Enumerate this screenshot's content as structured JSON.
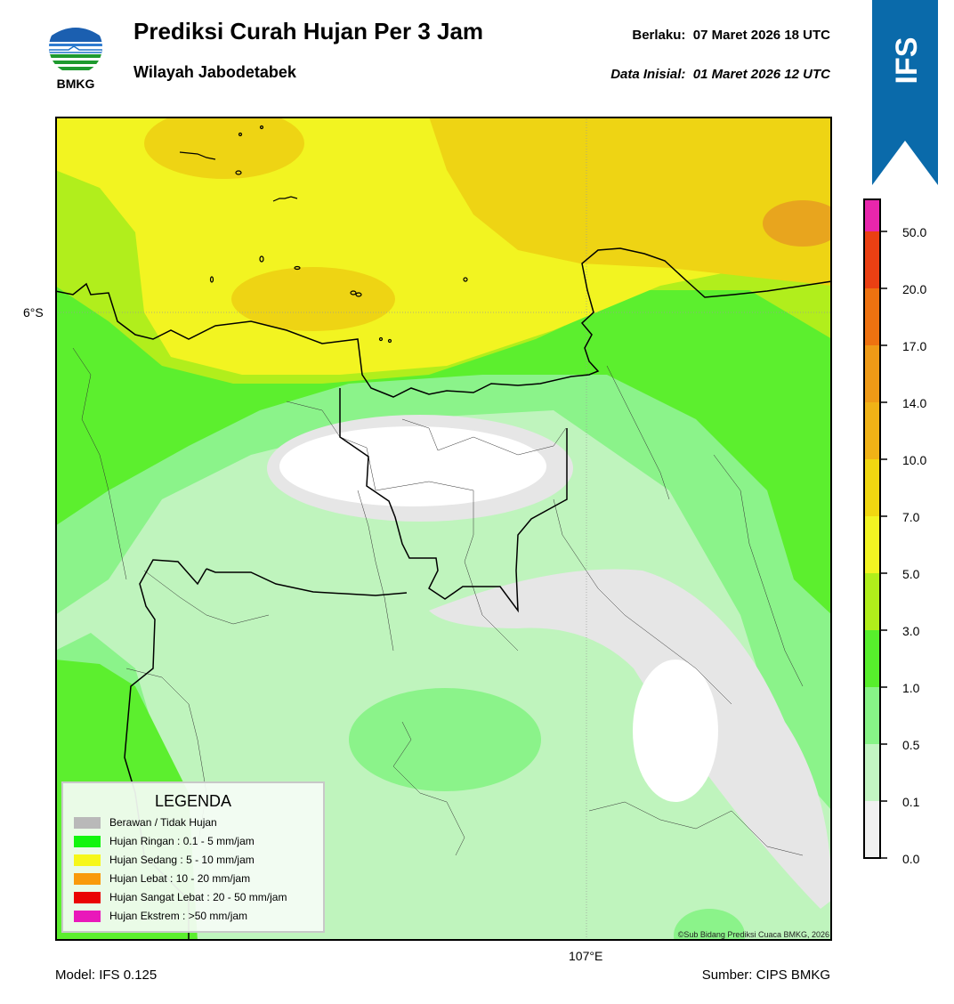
{
  "header": {
    "logo_text": "BMKG",
    "title": "Prediksi Curah Hujan Per 3 Jam",
    "subtitle": "Wilayah Jabodetabek",
    "valid_label": "Berlaku:",
    "valid_value": "07 Maret 2026 18 UTC",
    "init_label": "Data Inisial:",
    "init_value": "01 Maret 2026 12 UTC"
  },
  "badge": {
    "text": "IFS",
    "color": "#0a6aaa"
  },
  "map": {
    "lat_label": "6°S",
    "lon_label": "107°E",
    "copyright": "©Sub Bidang Prediksi Cuaca BMKG, 2026"
  },
  "colorbar": {
    "ticks": [
      "0.0",
      "0.1",
      "0.5",
      "1.0",
      "3.0",
      "5.0",
      "7.0",
      "10.0",
      "14.0",
      "17.0",
      "20.0",
      "50.0"
    ],
    "colors": [
      "#f1f1f1",
      "#c3f5c3",
      "#87f487",
      "#57ef2c",
      "#b0ee1b",
      "#f2f422",
      "#f1d711",
      "#f0b216",
      "#ef9a16",
      "#ee7210",
      "#ea4013",
      "#e826ac"
    ]
  },
  "legend": {
    "title": "LEGENDA",
    "items": [
      {
        "label": "Berawan / Tidak Hujan",
        "color": "#b9b9b9"
      },
      {
        "label": "Hujan Ringan : 0.1 - 5 mm/jam",
        "color": "#12f50e"
      },
      {
        "label": "Hujan Sedang : 5 - 10 mm/jam",
        "color": "#f6f71a"
      },
      {
        "label": "Hujan Lebat : 10 - 20 mm/jam",
        "color": "#f99a0c"
      },
      {
        "label": "Hujan Sangat Lebat : 20 - 50 mm/jam",
        "color": "#ea0404"
      },
      {
        "label": "Hujan Ekstrem : >50 mm/jam",
        "color": "#e918ba"
      }
    ]
  },
  "footer": {
    "model": "Model: IFS 0.125",
    "source": "Sumber: CIPS BMKG"
  }
}
